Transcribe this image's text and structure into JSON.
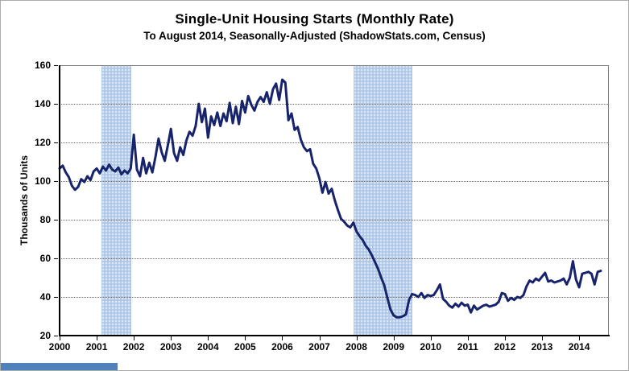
{
  "header": {
    "title": "Single-Unit Housing Starts (Monthly Rate)",
    "subtitle": "To August 2014, Seasonally-Adjusted (ShadowStats.com, Census)"
  },
  "chart_data": {
    "type": "line",
    "title": "Single-Unit Housing Starts (Monthly Rate)",
    "subtitle": "To August 2014, Seasonally-Adjusted (ShadowStats.com, Census)",
    "ylabel": "Thousands of Units",
    "xlabel": "",
    "ylim": [
      20,
      160
    ],
    "xlim": [
      2000,
      2014.78
    ],
    "y_ticks": [
      160,
      140,
      120,
      100,
      80,
      60,
      40,
      20
    ],
    "x_ticks": [
      2000,
      2001,
      2002,
      2003,
      2004,
      2005,
      2006,
      2007,
      2008,
      2009,
      2010,
      2011,
      2012,
      2013,
      2014
    ],
    "grid": "horizontal-dotted",
    "legend": "none",
    "recession_bands": [
      {
        "from": 2001.13,
        "to": 2001.93
      },
      {
        "from": 2007.92,
        "to": 2009.5
      }
    ],
    "series": [
      {
        "name": "Single-Unit Housing Starts",
        "frequency": "monthly",
        "start": "2000-01",
        "end": "2014-08",
        "values": [
          106.5,
          108,
          104.5,
          102,
          97.5,
          95.5,
          97,
          101,
          99.5,
          102.5,
          100.5,
          105,
          106.5,
          104,
          107.5,
          105.5,
          108.5,
          106,
          105,
          107,
          103.5,
          105.5,
          104,
          106.5,
          124,
          106,
          102.5,
          112,
          104,
          109.5,
          104.5,
          112.5,
          122,
          115,
          110.5,
          118.5,
          127,
          114.5,
          110.5,
          117.5,
          113.5,
          121,
          125.5,
          123.5,
          128.5,
          140,
          130.5,
          137.5,
          122.5,
          133.5,
          129,
          135.5,
          128.5,
          135,
          131,
          140.5,
          130,
          138.5,
          129.5,
          141.5,
          135.5,
          144,
          139.5,
          136.5,
          141,
          143.5,
          141,
          146,
          140,
          147.5,
          150.5,
          142,
          152.5,
          151,
          131.5,
          135,
          126.5,
          128,
          121.5,
          117.5,
          115.5,
          116.5,
          109,
          106.5,
          101.5,
          94,
          99.5,
          93.5,
          96,
          90,
          85,
          80.5,
          79,
          77,
          76,
          78.5,
          74,
          71.5,
          69.5,
          66.5,
          64.5,
          61.5,
          58,
          54.5,
          50,
          46,
          39.5,
          33.5,
          30.5,
          29.5,
          29.5,
          30,
          31,
          38.5,
          41.5,
          41,
          40,
          42,
          39.5,
          41,
          40.5,
          41,
          43.5,
          46.5,
          39,
          37.5,
          35.5,
          34.5,
          36.5,
          35,
          37,
          35.5,
          36,
          32,
          35.5,
          33.5,
          34.5,
          35.5,
          36,
          35,
          35.5,
          36,
          37.5,
          42,
          41.5,
          38,
          39.5,
          38.5,
          40,
          39.5,
          41,
          45.5,
          48.5,
          47.5,
          49.5,
          48.5,
          50.5,
          52.5,
          48,
          48.5,
          47.5,
          48,
          48.5,
          49.5,
          46.5,
          50,
          58.5,
          49,
          45,
          52,
          52.5,
          53,
          52,
          46.5,
          53,
          53.5
        ]
      }
    ],
    "colors": {
      "line": "#17246b",
      "band_base": "#b7cde9",
      "band_dot": "#e6eff9",
      "band_dot2": "#a9c4e4",
      "grid": "#6e6e6e",
      "axis": "#000000"
    }
  },
  "decor": {
    "bottom_left_fragment_color": "#4f81bd"
  }
}
